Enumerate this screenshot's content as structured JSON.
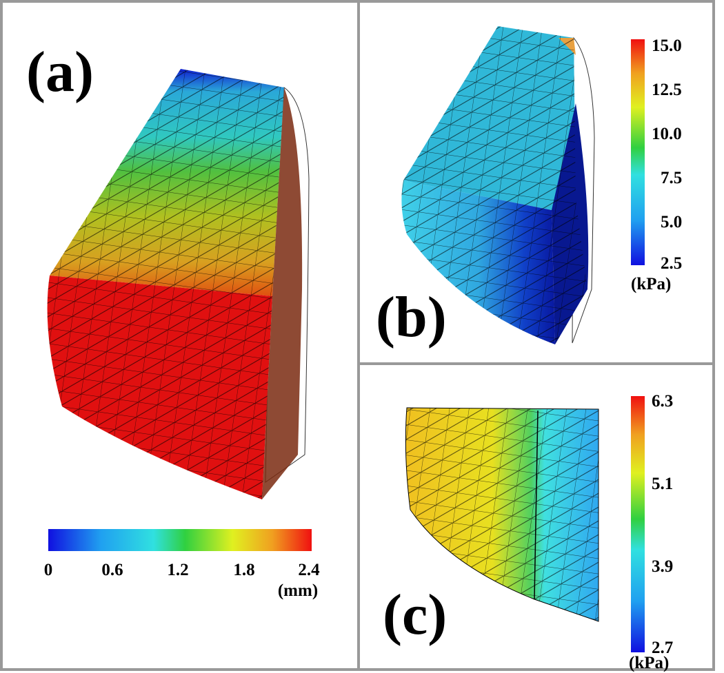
{
  "panels": [
    {
      "label": "(a)",
      "colorbar": {
        "ticks": [
          "0",
          "0.6",
          "1.2",
          "1.8",
          "2.4"
        ],
        "unit": "(mm)"
      }
    },
    {
      "label": "(b)",
      "colorbar": {
        "ticks": [
          "15.0",
          "12.5",
          "10.0",
          "7.5",
          "5.0",
          "2.5"
        ],
        "unit": "(kPa)"
      }
    },
    {
      "label": "(c)",
      "colorbar": {
        "ticks": [
          "6.3",
          "5.1",
          "3.9",
          "2.7"
        ],
        "unit": "(kPa)"
      }
    }
  ]
}
